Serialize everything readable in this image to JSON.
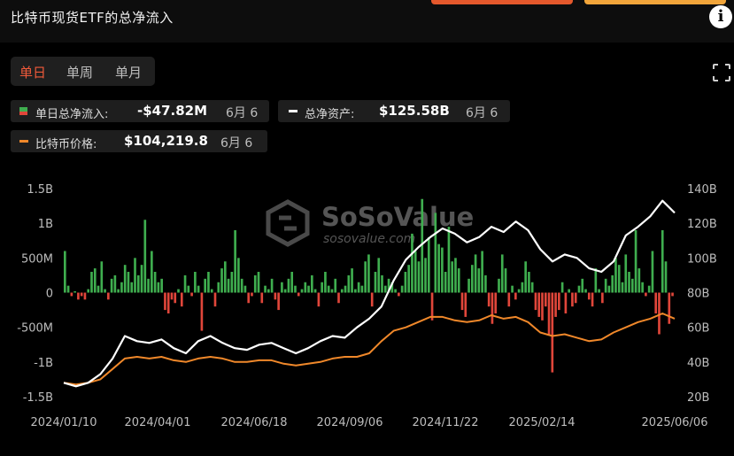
{
  "header": {
    "title": "比特币现货ETF的总净流入",
    "info_label": "i"
  },
  "tabs": [
    {
      "label": "单日",
      "active": true
    },
    {
      "label": "单周",
      "active": false
    },
    {
      "label": "单月",
      "active": false
    }
  ],
  "legend": {
    "flow": {
      "label": "单日总净流入:",
      "value": "-$47.82M",
      "date": "6月 6"
    },
    "assets": {
      "label": "总净资产:",
      "value": "$125.58B",
      "date": "6月 6"
    },
    "price": {
      "label": "比特币价格:",
      "value": "$104,219.8",
      "date": "6月 6"
    }
  },
  "watermark": {
    "brand": "SoSoValue",
    "url": "sosovalue.com"
  },
  "colors": {
    "positive": "#3fae4f",
    "negative": "#e0463a",
    "assets_line": "#ffffff",
    "price_line": "#f0882a",
    "tab_active": "#f05a3a",
    "grid": "#333333"
  },
  "chart_data": {
    "type": "bar",
    "title": "比特币现货ETF的总净流入",
    "x_tick_labels": [
      "2024/01/10",
      "2024/04/01",
      "2024/06/18",
      "2024/09/06",
      "2024/11/22",
      "2025/02/14",
      "2025/06/06"
    ],
    "left_axis": {
      "ticks": [
        "1.5B",
        "1B",
        "500M",
        "0",
        "-500M",
        "-1B",
        "-1.5B"
      ],
      "range": [
        -1.5,
        1.5
      ],
      "unit": "B USD"
    },
    "right_axis": {
      "ticks": [
        "140B",
        "120B",
        "100B",
        "80B",
        "60B",
        "40B",
        "20B"
      ],
      "range": [
        20,
        140
      ],
      "unit": "B USD"
    },
    "grid": false,
    "series": [
      {
        "name": "单日总净流入",
        "type": "bar",
        "axis": "left",
        "values": [
          0.6,
          0.1,
          -0.05,
          0.02,
          -0.1,
          -0.05,
          -0.1,
          0.05,
          0.3,
          0.35,
          0.1,
          0.45,
          0.05,
          -0.1,
          0.2,
          0.25,
          0.05,
          0.15,
          0.4,
          0.3,
          0.15,
          0.5,
          0.25,
          0.4,
          1.05,
          0.2,
          0.6,
          0.3,
          0.15,
          0.2,
          -0.25,
          -0.3,
          -0.1,
          -0.15,
          0.05,
          -0.2,
          0.25,
          0.1,
          -0.05,
          0.3,
          0.1,
          -0.55,
          0.2,
          0.3,
          0.05,
          -0.2,
          0.15,
          0.35,
          0.45,
          0.2,
          0.3,
          0.9,
          0.5,
          0.2,
          0.1,
          -0.15,
          -0.05,
          0.25,
          0.3,
          -0.15,
          0.1,
          0.05,
          0.2,
          -0.1,
          -0.25,
          0.15,
          0.05,
          0.2,
          0.3,
          0.1,
          -0.05,
          0.05,
          0.15,
          0.1,
          0.25,
          0.05,
          -0.2,
          0.15,
          0.3,
          0.1,
          0.05,
          0.2,
          -0.15,
          0.05,
          0.1,
          0.25,
          0.35,
          0.05,
          0.15,
          0.1,
          0.45,
          0.55,
          -0.2,
          0.3,
          0.5,
          0.25,
          0.1,
          0.2,
          0.15,
          0.05,
          -0.05,
          0.1,
          0.3,
          0.4,
          0.85,
          0.6,
          0.45,
          1.35,
          0.5,
          0.8,
          -0.4,
          1.15,
          0.7,
          0.65,
          0.3,
          0.95,
          0.45,
          0.5,
          0.35,
          -0.25,
          -0.35,
          0.2,
          0.4,
          0.55,
          0.35,
          0.6,
          0.25,
          -0.2,
          -0.45,
          -0.3,
          0.2,
          0.55,
          0.35,
          -0.2,
          0.1,
          -0.1,
          0.05,
          0.15,
          0.45,
          0.3,
          0.15,
          -0.25,
          -0.35,
          -0.4,
          -0.2,
          -0.6,
          -1.15,
          -0.35,
          -0.25,
          0.15,
          -0.3,
          0.05,
          -0.2,
          -0.15,
          0.1,
          0.2,
          0.05,
          -0.1,
          -0.2,
          0.35,
          0.05,
          -0.15,
          0.2,
          0.1,
          0.25,
          0.5,
          0.4,
          0.15,
          0.55,
          0.3,
          0.2,
          0.9,
          0.35,
          0.15,
          -0.05,
          0.1,
          0.6,
          -0.3,
          -0.6,
          0.9,
          0.45,
          -0.45,
          -0.05
        ]
      },
      {
        "name": "总净资产",
        "type": "line",
        "axis": "right",
        "x": [
          0,
          0.02,
          0.04,
          0.06,
          0.08,
          0.1,
          0.12,
          0.14,
          0.16,
          0.18,
          0.2,
          0.22,
          0.24,
          0.26,
          0.28,
          0.3,
          0.32,
          0.34,
          0.36,
          0.38,
          0.4,
          0.42,
          0.44,
          0.46,
          0.48,
          0.5,
          0.52,
          0.54,
          0.56,
          0.58,
          0.6,
          0.62,
          0.64,
          0.66,
          0.68,
          0.7,
          0.72,
          0.74,
          0.76,
          0.78,
          0.8,
          0.82,
          0.84,
          0.86,
          0.88,
          0.9,
          0.92,
          0.94,
          0.96,
          0.98,
          1.0
        ],
        "values": [
          28,
          26,
          28,
          33,
          42,
          55,
          52,
          51,
          53,
          48,
          45,
          52,
          55,
          51,
          48,
          47,
          50,
          51,
          48,
          45,
          48,
          52,
          55,
          54,
          60,
          65,
          72,
          87,
          99,
          106,
          112,
          117,
          114,
          109,
          112,
          118,
          115,
          121,
          116,
          105,
          98,
          102,
          100,
          94,
          92,
          98,
          113,
          118,
          124,
          133,
          126
        ]
      },
      {
        "name": "比特币价格",
        "type": "line",
        "axis": "right",
        "x": [
          0,
          0.02,
          0.04,
          0.06,
          0.08,
          0.1,
          0.12,
          0.14,
          0.16,
          0.18,
          0.2,
          0.22,
          0.24,
          0.26,
          0.28,
          0.3,
          0.32,
          0.34,
          0.36,
          0.38,
          0.4,
          0.42,
          0.44,
          0.46,
          0.48,
          0.5,
          0.52,
          0.54,
          0.56,
          0.58,
          0.6,
          0.62,
          0.64,
          0.66,
          0.68,
          0.7,
          0.72,
          0.74,
          0.76,
          0.78,
          0.8,
          0.82,
          0.84,
          0.86,
          0.88,
          0.9,
          0.92,
          0.94,
          0.96,
          0.98,
          1.0
        ],
        "values": [
          28,
          27,
          28,
          30,
          36,
          42,
          43,
          42,
          43,
          41,
          40,
          42,
          43,
          42,
          40,
          40,
          41,
          41,
          39,
          38,
          39,
          40,
          42,
          43,
          43,
          45,
          52,
          58,
          60,
          63,
          66,
          66,
          64,
          63,
          64,
          67,
          65,
          66,
          63,
          57,
          55,
          56,
          54,
          52,
          53,
          57,
          60,
          63,
          65,
          68,
          65
        ]
      }
    ]
  }
}
